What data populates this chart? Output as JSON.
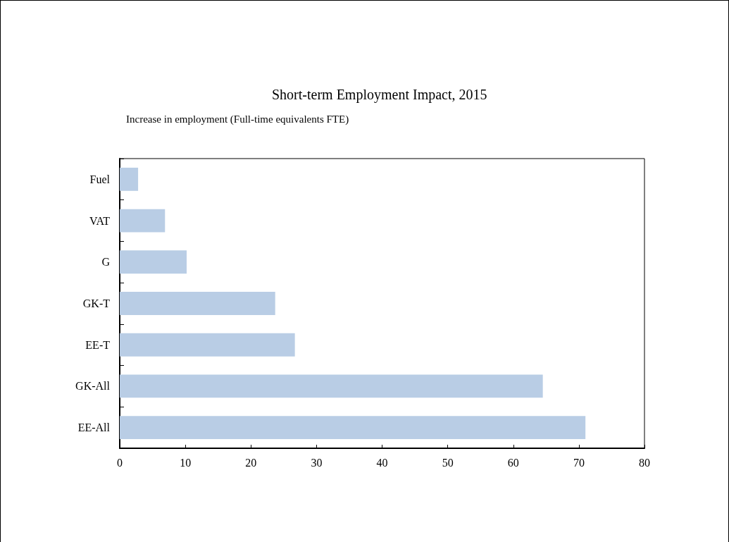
{
  "chart_data": {
    "type": "bar",
    "orientation": "horizontal",
    "title": "Short-term Employment Impact, 2015",
    "xlabel": "Increase in employment (Full-time equivalents FTE)",
    "categories": [
      "Fuel",
      "VAT",
      "G",
      "GK-T",
      "EE-T",
      "GK-All",
      "EE-All"
    ],
    "values": [
      2.8,
      6.9,
      10.2,
      23.7,
      26.7,
      64.5,
      71.0
    ],
    "color": "#b9cde5",
    "xlim": [
      0,
      80
    ],
    "xticks": [
      0,
      10,
      20,
      30,
      40,
      50,
      60,
      70,
      80
    ],
    "grid": false
  }
}
